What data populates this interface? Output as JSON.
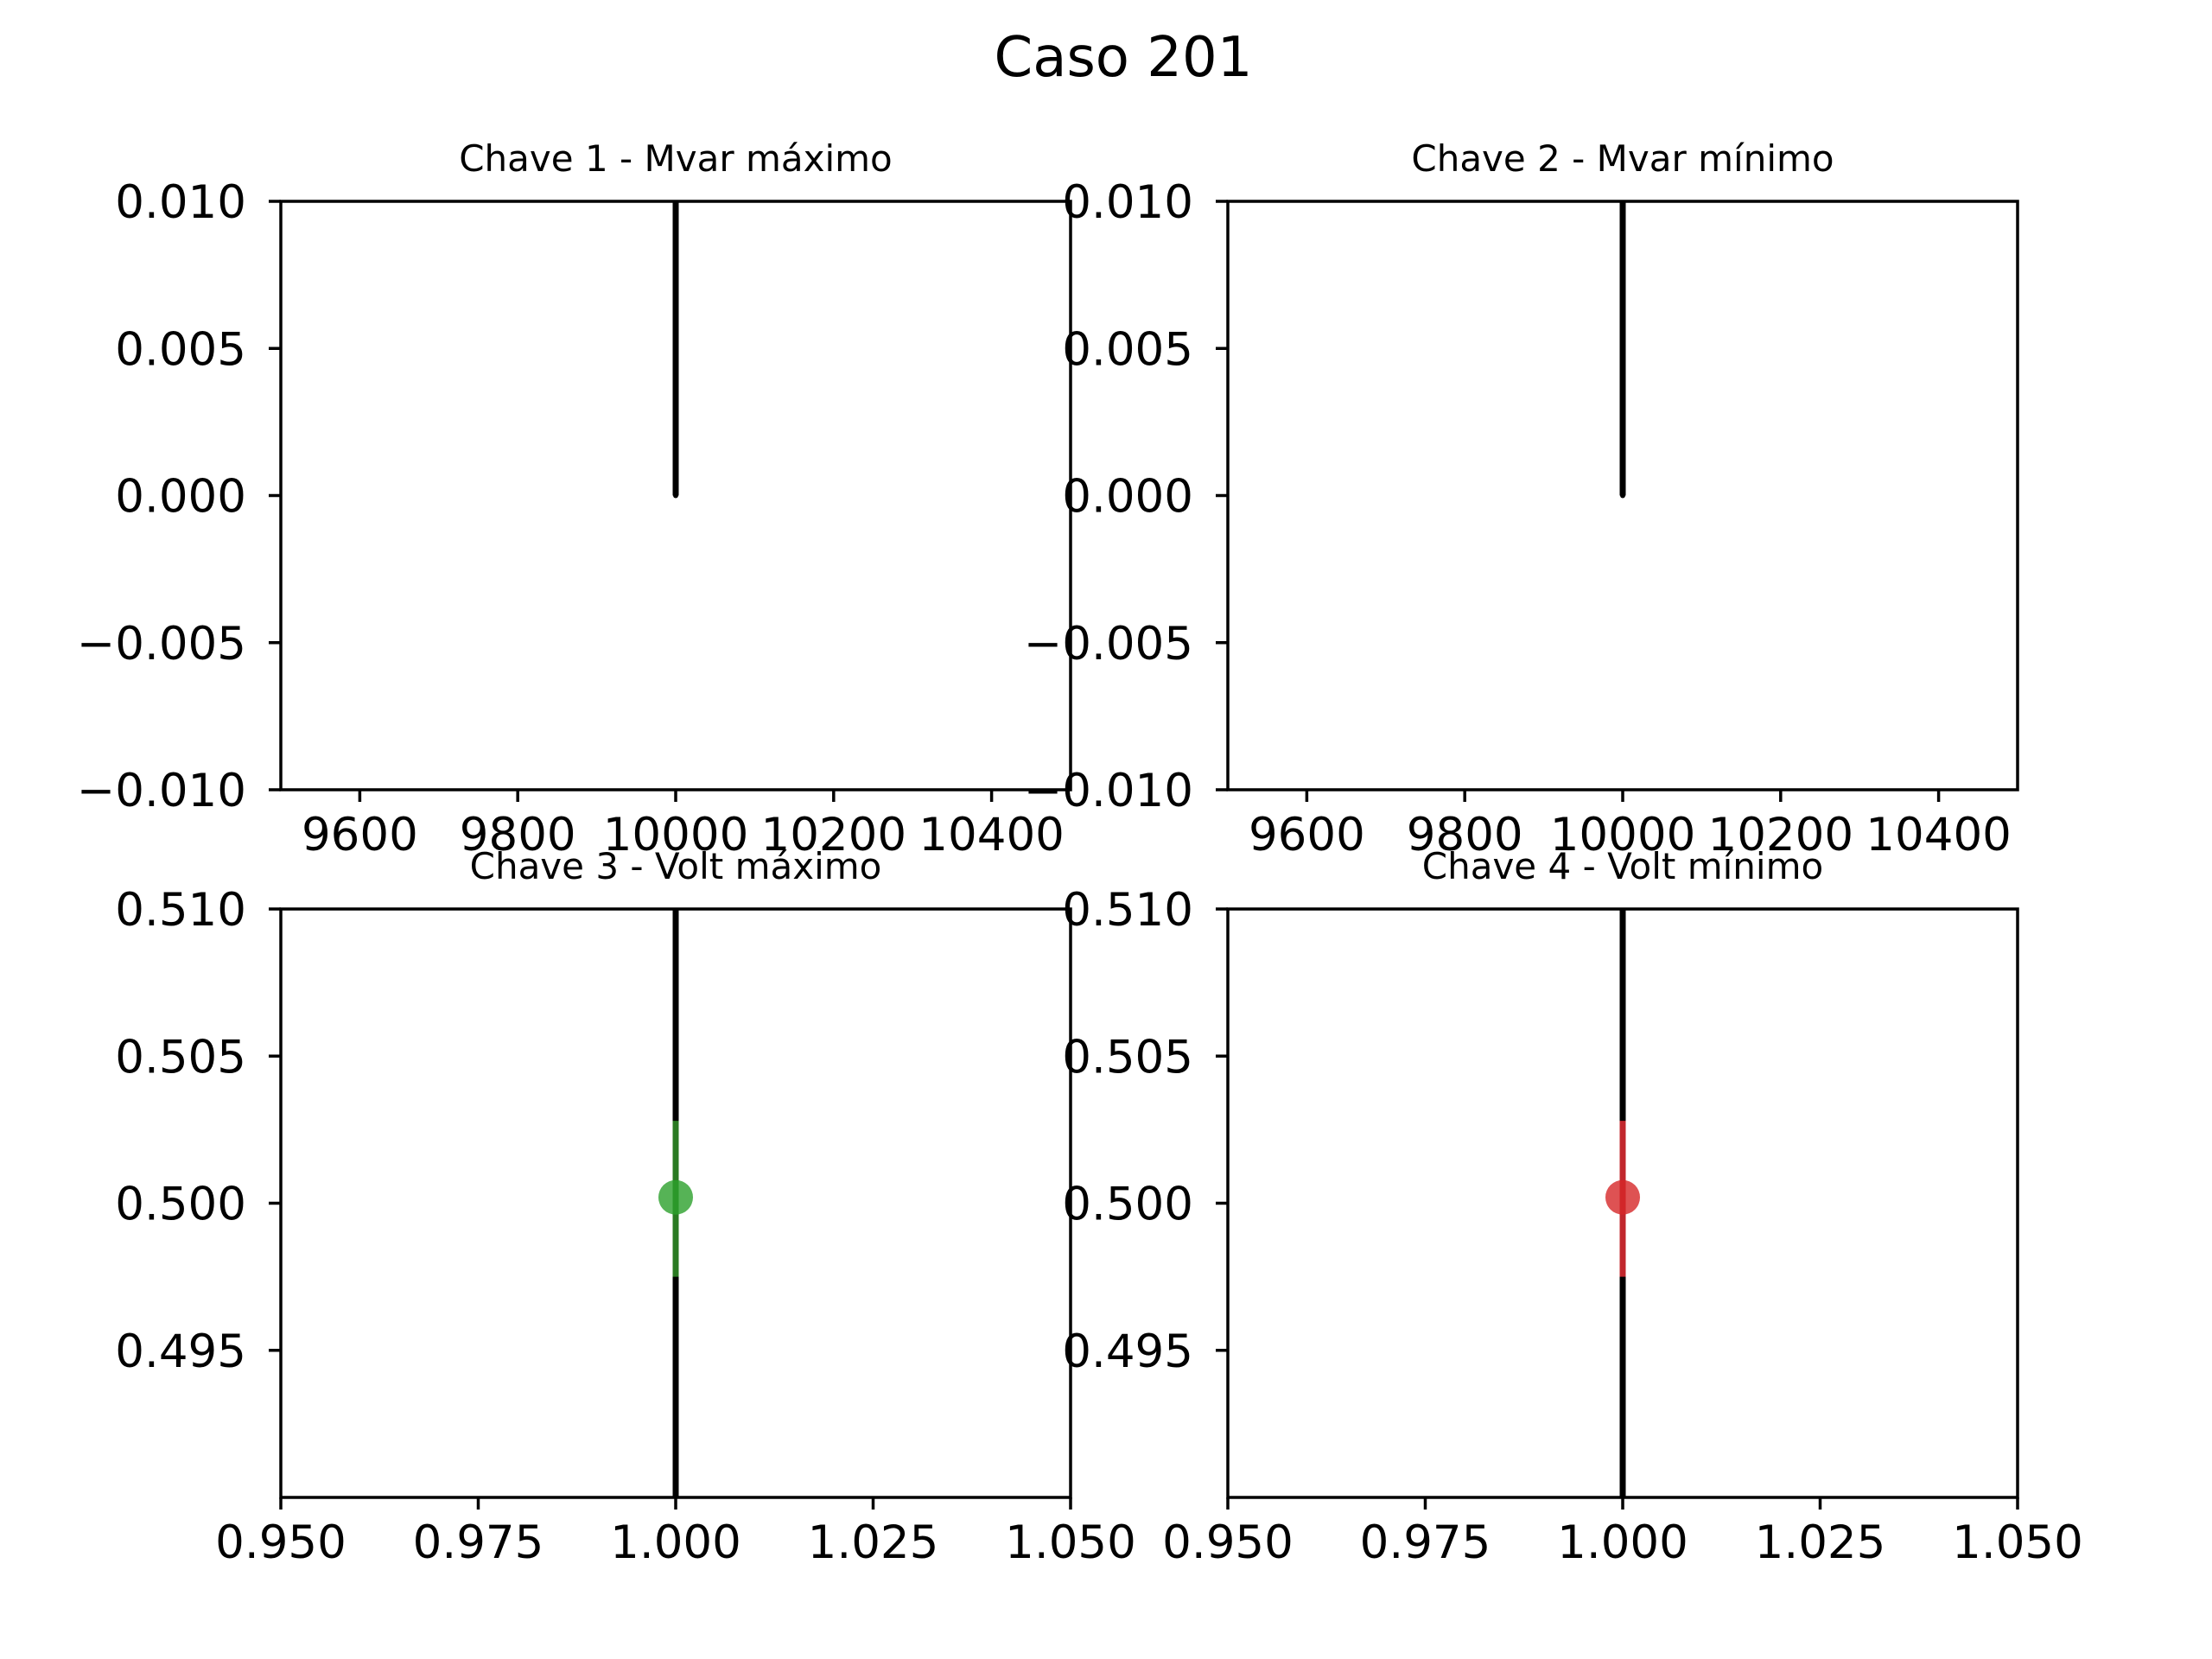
{
  "figure": {
    "title": "Caso 201"
  },
  "chart_data": [
    {
      "type": "scatter",
      "title": "Chave 1 - Mvar máximo",
      "xlabel": "",
      "ylabel": "",
      "xlim": [
        9500,
        10500
      ],
      "ylim": [
        -0.01,
        0.01
      ],
      "xticks": [
        9600,
        9800,
        10000,
        10200,
        10400
      ],
      "xtick_labels": [
        "9600",
        "9800",
        "10000",
        "10200",
        "10400"
      ],
      "yticks": [
        0.01,
        0.005,
        0.0,
        -0.005,
        -0.01
      ],
      "ytick_labels": [
        "0.010",
        "0.005",
        "0.000",
        "−0.005",
        "−0.010"
      ],
      "marker_color": "#000000",
      "points": [
        {
          "x": 10000,
          "y": 0.0
        }
      ],
      "vlines": [
        {
          "x": 10000,
          "y0": 0.0,
          "y1": 0.01,
          "color": "#000000"
        }
      ]
    },
    {
      "type": "scatter",
      "title": "Chave 2 - Mvar mínimo",
      "xlabel": "",
      "ylabel": "",
      "xlim": [
        9500,
        10500
      ],
      "ylim": [
        -0.01,
        0.01
      ],
      "xticks": [
        9600,
        9800,
        10000,
        10200,
        10400
      ],
      "xtick_labels": [
        "9600",
        "9800",
        "10000",
        "10200",
        "10400"
      ],
      "yticks": [
        0.01,
        0.005,
        0.0,
        -0.005,
        -0.01
      ],
      "ytick_labels": [
        "0.010",
        "0.005",
        "0.000",
        "−0.005",
        "−0.010"
      ],
      "marker_color": "#000000",
      "points": [
        {
          "x": 10000,
          "y": 0.0
        }
      ],
      "vlines": [
        {
          "x": 10000,
          "y0": 0.0,
          "y1": 0.01,
          "color": "#000000"
        }
      ]
    },
    {
      "type": "scatter",
      "title": "Chave 3 - Volt máximo",
      "xlabel": "",
      "ylabel": "",
      "xlim": [
        0.95,
        1.05
      ],
      "ylim": [
        0.49,
        0.51
      ],
      "xticks": [
        0.95,
        0.975,
        1.0,
        1.025,
        1.05
      ],
      "xtick_labels": [
        "0.950",
        "0.975",
        "1.000",
        "1.025",
        "1.050"
      ],
      "yticks": [
        0.51,
        0.505,
        0.5,
        0.495
      ],
      "ytick_labels": [
        "0.510",
        "0.505",
        "0.500",
        "0.495"
      ],
      "marker_color": "#2ca02c",
      "points": [
        {
          "x": 1.0,
          "y": 0.5002
        }
      ],
      "vlines": [
        {
          "x": 1.0,
          "y0": 0.49,
          "y1": 0.51,
          "color": "#000000"
        },
        {
          "x": 1.0,
          "y0": 0.4975,
          "y1": 0.5028,
          "color": "#2a7a22"
        }
      ]
    },
    {
      "type": "scatter",
      "title": "Chave 4 - Volt mínimo",
      "xlabel": "",
      "ylabel": "",
      "xlim": [
        0.95,
        1.05
      ],
      "ylim": [
        0.49,
        0.51
      ],
      "xticks": [
        0.95,
        0.975,
        1.0,
        1.025,
        1.05
      ],
      "xtick_labels": [
        "0.950",
        "0.975",
        "1.000",
        "1.025",
        "1.050"
      ],
      "yticks": [
        0.51,
        0.505,
        0.5,
        0.495
      ],
      "ytick_labels": [
        "0.510",
        "0.505",
        "0.500",
        "0.495"
      ],
      "marker_color": "#d62728",
      "points": [
        {
          "x": 1.0,
          "y": 0.5002
        }
      ],
      "vlines": [
        {
          "x": 1.0,
          "y0": 0.49,
          "y1": 0.51,
          "color": "#000000"
        },
        {
          "x": 1.0,
          "y0": 0.4975,
          "y1": 0.5028,
          "color": "#c1272d"
        }
      ]
    }
  ]
}
